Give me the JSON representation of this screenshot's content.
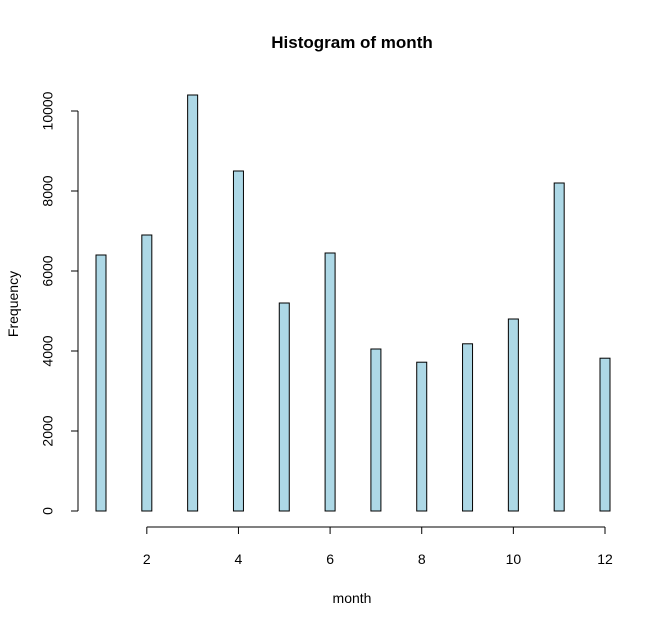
{
  "chart_data": {
    "type": "bar",
    "title": "Histogram of month",
    "xlabel": "month",
    "ylabel": "Frequency",
    "x": [
      1,
      2,
      3,
      4,
      5,
      6,
      7,
      8,
      9,
      10,
      11,
      12
    ],
    "values": [
      6400,
      6900,
      10400,
      8500,
      5200,
      6450,
      4050,
      3720,
      4180,
      4800,
      8200,
      3820
    ],
    "xlim": [
      1,
      12
    ],
    "ylim": [
      0,
      10400
    ],
    "x_ticks": [
      2,
      4,
      6,
      8,
      10,
      12
    ],
    "y_ticks": [
      0,
      2000,
      4000,
      6000,
      8000,
      10000
    ],
    "x_tick_labels": [
      "2",
      "4",
      "6",
      "8",
      "10",
      "12"
    ],
    "y_tick_labels": [
      "0",
      "2000",
      "4000",
      "6000",
      "8000",
      "10000"
    ],
    "bar_color": "#add8e6",
    "grid": false,
    "legend": "none"
  }
}
